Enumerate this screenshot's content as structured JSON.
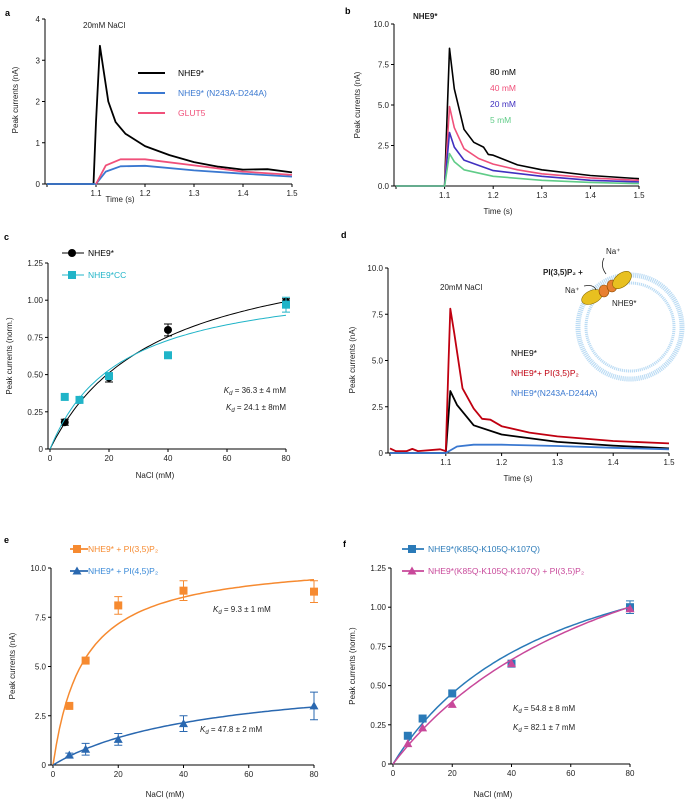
{
  "chart_data": [
    {
      "id": "a",
      "letter": "a",
      "type": "line",
      "title": "20mM NaCl",
      "title_bold": false,
      "xlabel": "Time (s)",
      "ylabel": "Peak currents (nA)",
      "xlim": [
        1.0,
        1.5
      ],
      "ylim": [
        0,
        4
      ],
      "xticks": [
        {
          "v": 1.1,
          "label": "1.1"
        },
        {
          "v": 1.2,
          "label": "1.2"
        },
        {
          "v": 1.3,
          "label": "1.3"
        },
        {
          "v": 1.4,
          "label": "1.4"
        },
        {
          "v": 1.5,
          "label": "1.5"
        }
      ],
      "yticks": [
        {
          "v": 0,
          "label": "0"
        },
        {
          "v": 1,
          "label": "1"
        },
        {
          "v": 2,
          "label": "2"
        },
        {
          "v": 3,
          "label": "3"
        },
        {
          "v": 4,
          "label": "4"
        }
      ],
      "legend_style": "line",
      "series": [
        {
          "name": "NHE9*",
          "color": "#000000",
          "points": [
            [
              1.0,
              0
            ],
            [
              1.095,
              0
            ],
            [
              1.1,
              1.5
            ],
            [
              1.108,
              3.35
            ],
            [
              1.115,
              2.8
            ],
            [
              1.125,
              2.0
            ],
            [
              1.14,
              1.5
            ],
            [
              1.16,
              1.22
            ],
            [
              1.2,
              0.92
            ],
            [
              1.25,
              0.7
            ],
            [
              1.3,
              0.53
            ],
            [
              1.35,
              0.42
            ],
            [
              1.4,
              0.35
            ],
            [
              1.45,
              0.36
            ],
            [
              1.5,
              0.28
            ]
          ]
        },
        {
          "name": "NHE9* (N243A-D244A)",
          "color": "#3a78d0",
          "points": [
            [
              1.0,
              0
            ],
            [
              1.1,
              0
            ],
            [
              1.12,
              0.3
            ],
            [
              1.15,
              0.43
            ],
            [
              1.2,
              0.44
            ],
            [
              1.3,
              0.33
            ],
            [
              1.4,
              0.25
            ],
            [
              1.5,
              0.18
            ]
          ]
        },
        {
          "name": "GLUT5",
          "color": "#f0507a",
          "points": [
            [
              1.1,
              0
            ],
            [
              1.12,
              0.45
            ],
            [
              1.15,
              0.6
            ],
            [
              1.2,
              0.6
            ],
            [
              1.3,
              0.45
            ],
            [
              1.4,
              0.3
            ],
            [
              1.5,
              0.22
            ]
          ]
        }
      ]
    },
    {
      "id": "b",
      "letter": "b",
      "type": "line",
      "title": "NHE9*",
      "title_bold": true,
      "xlabel": "Time (s)",
      "ylabel": "Peak currents (nA)",
      "xlim": [
        1.0,
        1.5
      ],
      "ylim": [
        0,
        10
      ],
      "xticks": [
        {
          "v": 1.1,
          "label": "1.1"
        },
        {
          "v": 1.2,
          "label": "1.2"
        },
        {
          "v": 1.3,
          "label": "1.3"
        },
        {
          "v": 1.4,
          "label": "1.4"
        },
        {
          "v": 1.5,
          "label": "1.5"
        }
      ],
      "yticks": [
        {
          "v": 0,
          "label": "0.0"
        },
        {
          "v": 2.5,
          "label": "2.5"
        },
        {
          "v": 5,
          "label": "5.0"
        },
        {
          "v": 7.5,
          "label": "7.5"
        },
        {
          "v": 10,
          "label": "10.0"
        }
      ],
      "legend_style": "text",
      "series": [
        {
          "name": "80 mM",
          "color": "#000000",
          "points": [
            [
              1.0,
              0
            ],
            [
              1.1,
              0
            ],
            [
              1.11,
              8.5
            ],
            [
              1.12,
              6.0
            ],
            [
              1.14,
              3.5
            ],
            [
              1.16,
              2.7
            ],
            [
              1.18,
              2.4
            ],
            [
              1.19,
              1.95
            ],
            [
              1.2,
              1.9
            ],
            [
              1.25,
              1.3
            ],
            [
              1.3,
              1.0
            ],
            [
              1.4,
              0.65
            ],
            [
              1.5,
              0.45
            ]
          ]
        },
        {
          "name": "40 mM",
          "color": "#f0507a",
          "points": [
            [
              1.0,
              0
            ],
            [
              1.1,
              0
            ],
            [
              1.11,
              4.9
            ],
            [
              1.12,
              3.6
            ],
            [
              1.14,
              2.3
            ],
            [
              1.17,
              1.7
            ],
            [
              1.2,
              1.35
            ],
            [
              1.25,
              1.0
            ],
            [
              1.3,
              0.75
            ],
            [
              1.4,
              0.5
            ],
            [
              1.5,
              0.35
            ]
          ]
        },
        {
          "name": "20 mM",
          "color": "#4030c0",
          "points": [
            [
              1.0,
              0
            ],
            [
              1.1,
              0
            ],
            [
              1.11,
              3.3
            ],
            [
              1.12,
              2.4
            ],
            [
              1.14,
              1.6
            ],
            [
              1.2,
              0.95
            ],
            [
              1.3,
              0.6
            ],
            [
              1.4,
              0.35
            ],
            [
              1.5,
              0.25
            ]
          ]
        },
        {
          "name": "5 mM",
          "color": "#60cc88",
          "points": [
            [
              1.0,
              0
            ],
            [
              1.1,
              0
            ],
            [
              1.11,
              2.0
            ],
            [
              1.12,
              1.5
            ],
            [
              1.14,
              1.0
            ],
            [
              1.2,
              0.6
            ],
            [
              1.3,
              0.35
            ],
            [
              1.4,
              0.22
            ],
            [
              1.5,
              0.15
            ]
          ]
        }
      ]
    },
    {
      "id": "c",
      "letter": "c",
      "type": "scatter",
      "title": "",
      "xlabel": "NaCl (mM)",
      "ylabel": "Peak currents (norm.)",
      "xlim": [
        0,
        80
      ],
      "ylim": [
        0,
        1.25
      ],
      "xticks": [
        {
          "v": 0,
          "label": "0"
        },
        {
          "v": 20,
          "label": "20"
        },
        {
          "v": 40,
          "label": "40"
        },
        {
          "v": 60,
          "label": "60"
        },
        {
          "v": 80,
          "label": "80"
        }
      ],
      "yticks": [
        {
          "v": 0,
          "label": "0"
        },
        {
          "v": 0.25,
          "label": "0.25"
        },
        {
          "v": 0.5,
          "label": "0.50"
        },
        {
          "v": 0.75,
          "label": "0.75"
        },
        {
          "v": 1,
          "label": "1.00"
        },
        {
          "v": 1.25,
          "label": "1.25"
        }
      ],
      "legend_style": "marker",
      "series": [
        {
          "name": "NHE9*",
          "color": "#000000",
          "marker": "circle",
          "x": [
            5,
            10,
            20,
            40,
            80
          ],
          "y": [
            0.18,
            0.33,
            0.48,
            0.8,
            0.99
          ],
          "err": [
            0.02,
            0.02,
            0.03,
            0.04,
            0.02
          ],
          "fit": {
            "model": "michaelis-menten",
            "Kd": 36.3,
            "Vmax": 1.44
          },
          "kd_label": {
            "symbol": "K",
            "sub": "d",
            "text": " = 36.3 ± 4 mM"
          }
        },
        {
          "name": "NHE9*CC",
          "color": "#20b4c8",
          "marker": "square",
          "x": [
            5,
            10,
            20,
            40,
            80
          ],
          "y": [
            0.35,
            0.33,
            0.49,
            0.63,
            0.97
          ],
          "err": [
            0,
            0,
            0.02,
            0,
            0.05
          ],
          "fit": {
            "model": "michaelis-menten",
            "Kd": 24.1,
            "Vmax": 1.17
          },
          "kd_label": {
            "symbol": "K",
            "sub": "d",
            "text": " = 24.1 ± 8mM"
          }
        }
      ]
    },
    {
      "id": "d",
      "letter": "d",
      "type": "line",
      "title": "20mM NaCl",
      "title_bold": false,
      "xlabel": "Time (s)",
      "ylabel": "Peak currents (nA)",
      "xlim": [
        1.0,
        1.5
      ],
      "ylim": [
        0,
        10
      ],
      "xticks": [
        {
          "v": 1.1,
          "label": "1.1"
        },
        {
          "v": 1.2,
          "label": "1.2"
        },
        {
          "v": 1.3,
          "label": "1.3"
        },
        {
          "v": 1.4,
          "label": "1.4"
        },
        {
          "v": 1.5,
          "label": "1.5"
        }
      ],
      "yticks": [
        {
          "v": 0,
          "label": "0"
        },
        {
          "v": 2.5,
          "label": "2.5"
        },
        {
          "v": 5,
          "label": "5.0"
        },
        {
          "v": 7.5,
          "label": "7.5"
        },
        {
          "v": 10,
          "label": "10.0"
        }
      ],
      "legend_style": "text",
      "series": [
        {
          "name": "NHE9*",
          "color": "#000000",
          "points": [
            [
              1.0,
              0
            ],
            [
              1.1,
              0
            ],
            [
              1.108,
              3.35
            ],
            [
              1.12,
              2.6
            ],
            [
              1.15,
              1.5
            ],
            [
              1.2,
              1.0
            ],
            [
              1.3,
              0.6
            ],
            [
              1.4,
              0.4
            ],
            [
              1.5,
              0.25
            ]
          ]
        },
        {
          "name": "NHE9*+ PI(3,5)P₂",
          "color": "#c00010",
          "points": [
            [
              1.0,
              0.25
            ],
            [
              1.01,
              0.1
            ],
            [
              1.03,
              0.1
            ],
            [
              1.04,
              0.22
            ],
            [
              1.05,
              0.1
            ],
            [
              1.09,
              0.2
            ],
            [
              1.1,
              0.1
            ],
            [
              1.105,
              5.0
            ],
            [
              1.108,
              7.8
            ],
            [
              1.115,
              6.5
            ],
            [
              1.13,
              3.5
            ],
            [
              1.15,
              2.4
            ],
            [
              1.165,
              1.85
            ],
            [
              1.18,
              1.8
            ],
            [
              1.2,
              1.45
            ],
            [
              1.25,
              1.1
            ],
            [
              1.3,
              0.9
            ],
            [
              1.4,
              0.65
            ],
            [
              1.5,
              0.52
            ]
          ]
        },
        {
          "name": "NHE9*(N243A-D244A)",
          "color": "#3a78d0",
          "points": [
            [
              1.0,
              0
            ],
            [
              1.1,
              0
            ],
            [
              1.12,
              0.35
            ],
            [
              1.15,
              0.45
            ],
            [
              1.2,
              0.45
            ],
            [
              1.3,
              0.38
            ],
            [
              1.4,
              0.28
            ],
            [
              1.5,
              0.2
            ]
          ]
        }
      ],
      "schematic": {
        "lipid": "PI(3,5)P₂ +",
        "ion_top": "Na⁺",
        "ion_left": "Na⁺",
        "protein": "NHE9*",
        "membrane_color": "#bcdcf4",
        "protein_colors": [
          "#e8c020",
          "#e88030"
        ]
      }
    },
    {
      "id": "e",
      "letter": "e",
      "type": "scatter",
      "title": "",
      "xlabel": "NaCl (mM)",
      "ylabel": "Peak currents (nA)",
      "xlim": [
        0,
        80
      ],
      "ylim": [
        0,
        10
      ],
      "xticks": [
        {
          "v": 0,
          "label": "0"
        },
        {
          "v": 20,
          "label": "20"
        },
        {
          "v": 40,
          "label": "40"
        },
        {
          "v": 60,
          "label": "60"
        },
        {
          "v": 80,
          "label": "80"
        }
      ],
      "yticks": [
        {
          "v": 0,
          "label": "0"
        },
        {
          "v": 2.5,
          "label": "2.5"
        },
        {
          "v": 5,
          "label": "5.0"
        },
        {
          "v": 7.5,
          "label": "7.5"
        },
        {
          "v": 10,
          "label": "10.0"
        }
      ],
      "legend_style": "marker",
      "series": [
        {
          "name": "NHE9* + PI(3,5)P₂",
          "color": "#f68a30",
          "marker": "square",
          "x": [
            5,
            10,
            20,
            40,
            80
          ],
          "y": [
            3.0,
            5.3,
            8.1,
            8.85,
            8.8
          ],
          "err": [
            0,
            0,
            0.45,
            0.5,
            0.55
          ],
          "fit": {
            "model": "michaelis-menten",
            "Kd": 9.3,
            "Vmax": 10.5
          },
          "kd_label": {
            "symbol": "K",
            "sub": "d",
            "text": " = 9.3 ± 1 mM"
          }
        },
        {
          "name": "NHE9* + PI(4,5)P₂",
          "color": "#2a68b0",
          "text_color": "#3a8ad8",
          "marker": "triangle",
          "x": [
            5,
            10,
            20,
            40,
            80
          ],
          "y": [
            0.5,
            0.8,
            1.3,
            2.1,
            3.0
          ],
          "err": [
            0.1,
            0.3,
            0.3,
            0.4,
            0.7
          ],
          "fit": {
            "model": "michaelis-menten",
            "Kd": 47.8,
            "Vmax": 4.71
          },
          "kd_label": {
            "symbol": "K",
            "sub": "d",
            "text": " = 47.8 ± 2 mM"
          }
        }
      ]
    },
    {
      "id": "f",
      "letter": "f",
      "type": "scatter",
      "title": "",
      "xlabel": "NaCl (mM)",
      "ylabel": "Peak currents (norm.)",
      "xlim": [
        0,
        80
      ],
      "ylim": [
        0,
        1.25
      ],
      "xticks": [
        {
          "v": 0,
          "label": "0"
        },
        {
          "v": 20,
          "label": "20"
        },
        {
          "v": 40,
          "label": "40"
        },
        {
          "v": 60,
          "label": "60"
        },
        {
          "v": 80,
          "label": "80"
        }
      ],
      "yticks": [
        {
          "v": 0,
          "label": "0"
        },
        {
          "v": 0.25,
          "label": "0.25"
        },
        {
          "v": 0.5,
          "label": "0.50"
        },
        {
          "v": 0.75,
          "label": "0.75"
        },
        {
          "v": 1,
          "label": "1.00"
        },
        {
          "v": 1.25,
          "label": "1.25"
        }
      ],
      "legend_style": "marker",
      "series": [
        {
          "name": "NHE9*(K85Q-K105Q-K107Q)",
          "color": "#2a7ab8",
          "marker": "square",
          "x": [
            5,
            10,
            20,
            40,
            80
          ],
          "y": [
            0.18,
            0.29,
            0.45,
            0.64,
            1.0
          ],
          "err": [
            0,
            0,
            0,
            0,
            0.04
          ],
          "fit": {
            "model": "michaelis-menten",
            "Kd": 54.8,
            "Vmax": 1.685
          },
          "kd_label": {
            "symbol": "K",
            "sub": "d",
            "text": " = 54.8 ± 8 mM"
          }
        },
        {
          "name": "NHE9*(K85Q-K105Q-K107Q) + PI(3,5)P₂",
          "color": "#c8489a",
          "marker": "triangle",
          "x": [
            5,
            10,
            20,
            40,
            80
          ],
          "y": [
            0.13,
            0.23,
            0.38,
            0.64,
            0.99
          ],
          "err": [
            0,
            0,
            0,
            0,
            0
          ],
          "fit": {
            "model": "michaelis-menten",
            "Kd": 82.1,
            "Vmax": 2.03
          },
          "kd_label": {
            "symbol": "K",
            "sub": "d",
            "text": " = 82.1 ± 7 mM"
          }
        }
      ]
    }
  ]
}
